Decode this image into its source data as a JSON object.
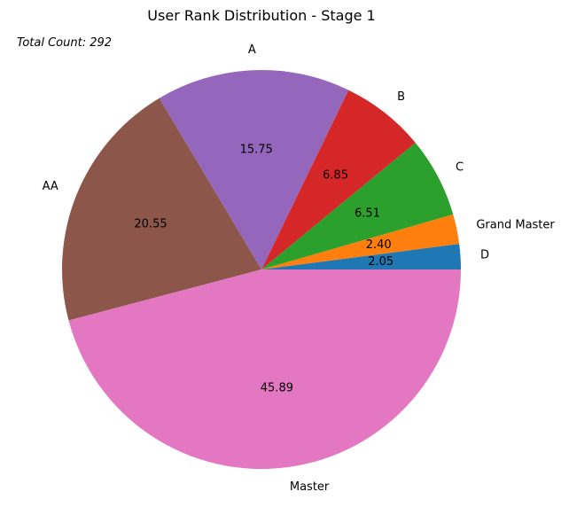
{
  "chart_data": {
    "type": "pie",
    "title": "User Rank Distribution - Stage 1",
    "annotation": "Total Count: 292",
    "start_angle_deg": 0,
    "direction": "counterclockwise",
    "slices": [
      {
        "label": "D",
        "value": 2.05,
        "display": "2.05",
        "color": "#1f77b4"
      },
      {
        "label": "Grand Master",
        "value": 2.4,
        "display": "2.40",
        "color": "#ff7f0e"
      },
      {
        "label": "C",
        "value": 6.51,
        "display": "6.51",
        "color": "#2ca02c"
      },
      {
        "label": "B",
        "value": 6.85,
        "display": "6.85",
        "color": "#d62728"
      },
      {
        "label": "A",
        "value": 15.75,
        "display": "15.75",
        "color": "#9467bd"
      },
      {
        "label": "AA",
        "value": 20.55,
        "display": "20.55",
        "color": "#8c564b"
      },
      {
        "label": "Master",
        "value": 45.89,
        "display": "45.89",
        "color": "#e377c2"
      }
    ]
  }
}
